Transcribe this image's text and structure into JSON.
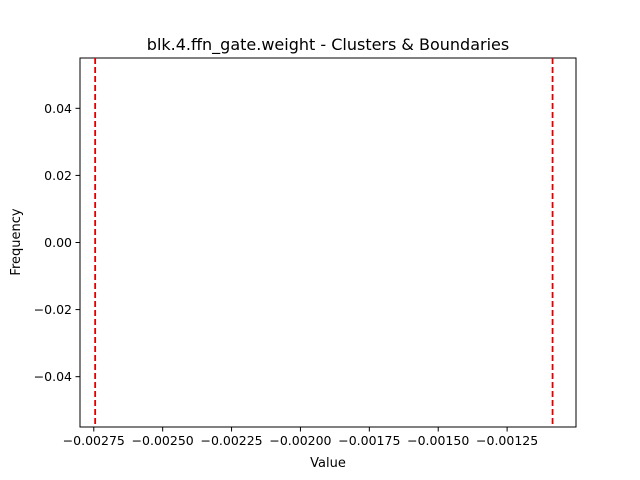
{
  "chart_data": {
    "type": "line",
    "title": "blk.4.ffn_gate.weight - Clusters & Boundaries",
    "xlabel": "Value",
    "ylabel": "Frequency",
    "xlim": [
      -0.0028,
      -0.001
    ],
    "ylim": [
      -0.055,
      0.055
    ],
    "x_ticks": [
      -0.00275,
      -0.0025,
      -0.00225,
      -0.002,
      -0.00175,
      -0.0015,
      -0.00125
    ],
    "x_tick_labels": [
      "−0.00275",
      "−0.00250",
      "−0.00225",
      "−0.00200",
      "−0.00175",
      "−0.00150",
      "−0.00125"
    ],
    "y_ticks": [
      0.04,
      0.02,
      0.0,
      -0.02,
      -0.04
    ],
    "y_tick_labels": [
      "0.04",
      "0.02",
      "0.00",
      "−0.02",
      "−0.04"
    ],
    "boundaries": [
      -0.002745,
      -0.001085
    ],
    "boundary_color": "#e00000",
    "boundary_style": "dashed",
    "grid": false,
    "legend": "none"
  }
}
